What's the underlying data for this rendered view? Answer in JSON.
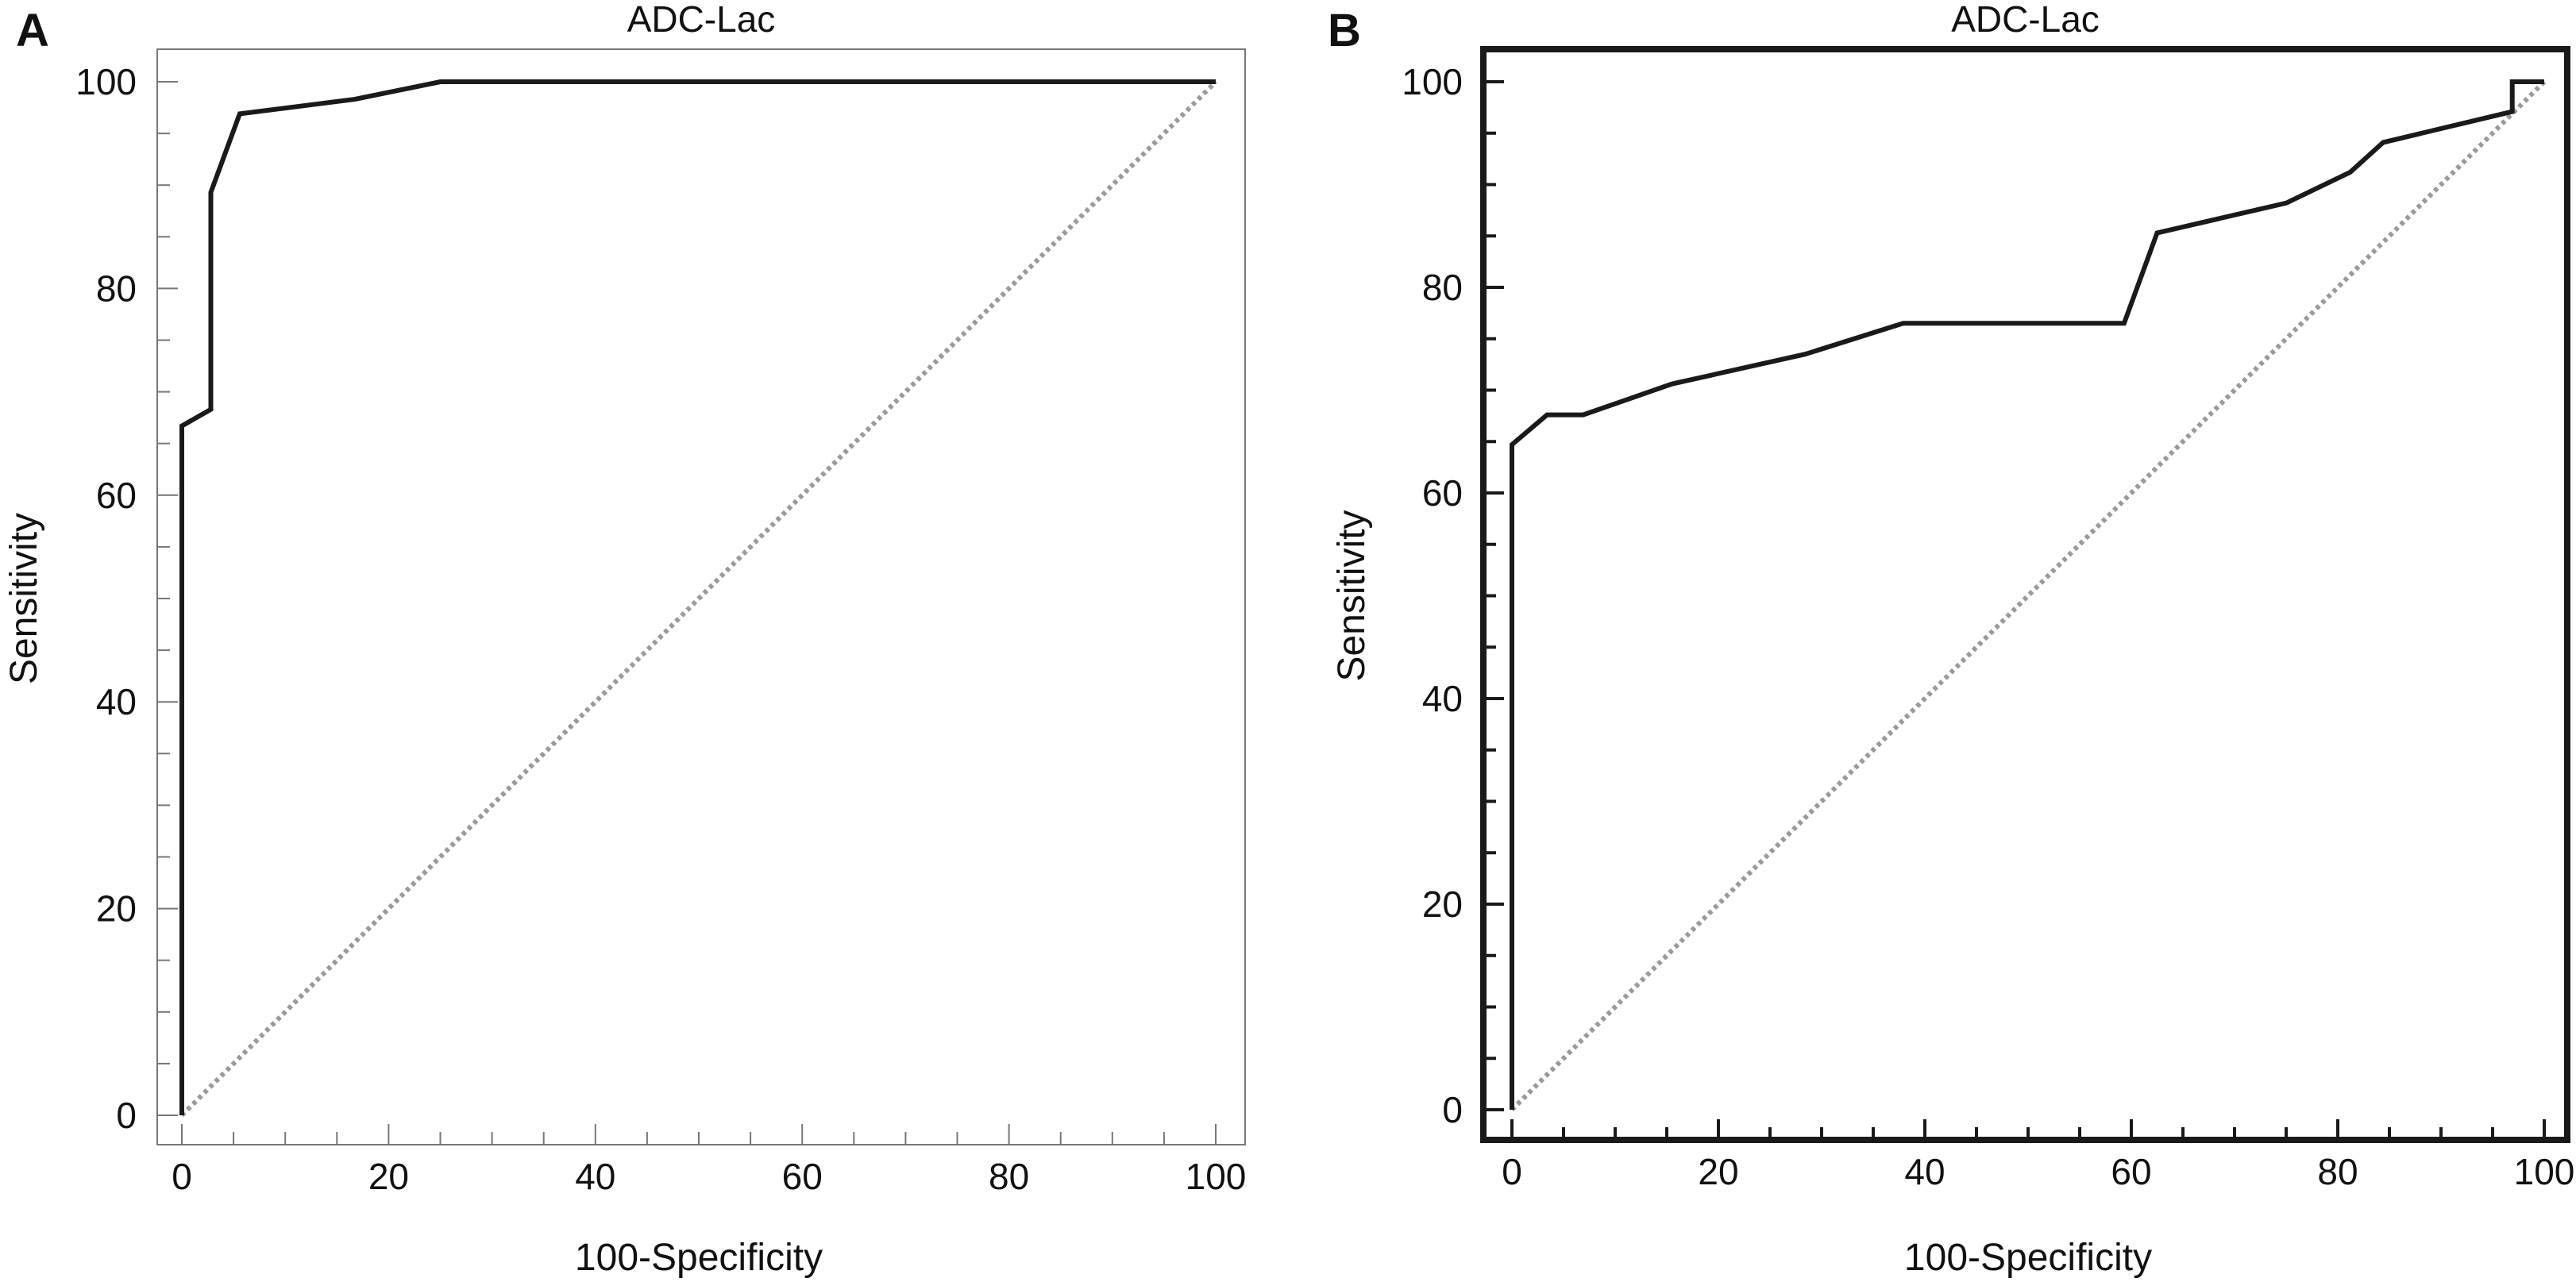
{
  "chart_data": [
    {
      "panel_label": "A",
      "type": "line",
      "title": "ADC-Lac",
      "xlabel": "100-Specificity",
      "ylabel": "Sensitivity",
      "xlim": [
        0,
        100
      ],
      "ylim": [
        0,
        100
      ],
      "xticks": [
        "0",
        "20",
        "40",
        "60",
        "80",
        "100"
      ],
      "yticks": [
        "0",
        "20",
        "40",
        "60",
        "80",
        "100"
      ],
      "grid": false,
      "series": [
        {
          "style": "solid",
          "color": "#1a1a1a",
          "x": [
            0,
            0,
            2.8,
            2.8,
            5.6,
            16.7,
            25,
            100
          ],
          "y": [
            0,
            66.7,
            68.3,
            89.3,
            96.9,
            98.3,
            100,
            100
          ]
        },
        {
          "style": "dotted",
          "color": "#9a9a9a",
          "x": [
            0,
            100
          ],
          "y": [
            0,
            100
          ]
        }
      ]
    },
    {
      "panel_label": "B",
      "type": "line",
      "title": "ADC-Lac",
      "xlabel": "100-Specificity",
      "ylabel": "Sensitivity",
      "xlim": [
        0,
        100
      ],
      "ylim": [
        0,
        100
      ],
      "xticks": [
        "0",
        "20",
        "40",
        "60",
        "80",
        "100"
      ],
      "yticks": [
        "0",
        "20",
        "40",
        "60",
        "80",
        "100"
      ],
      "grid": false,
      "series": [
        {
          "style": "solid",
          "color": "#1a1a1a",
          "x": [
            0,
            0,
            3.4,
            6.9,
            15.5,
            28.4,
            37.9,
            50,
            59.3,
            62.5,
            75,
            81.2,
            84.4,
            96.9,
            96.9,
            100
          ],
          "y": [
            0,
            64.7,
            67.6,
            67.6,
            70.6,
            73.5,
            76.5,
            76.5,
            76.5,
            85.3,
            88.2,
            91.2,
            94.1,
            97.1,
            100,
            100
          ]
        },
        {
          "style": "dotted",
          "color": "#9a9a9a",
          "x": [
            0,
            100
          ],
          "y": [
            0,
            100
          ]
        }
      ]
    }
  ]
}
